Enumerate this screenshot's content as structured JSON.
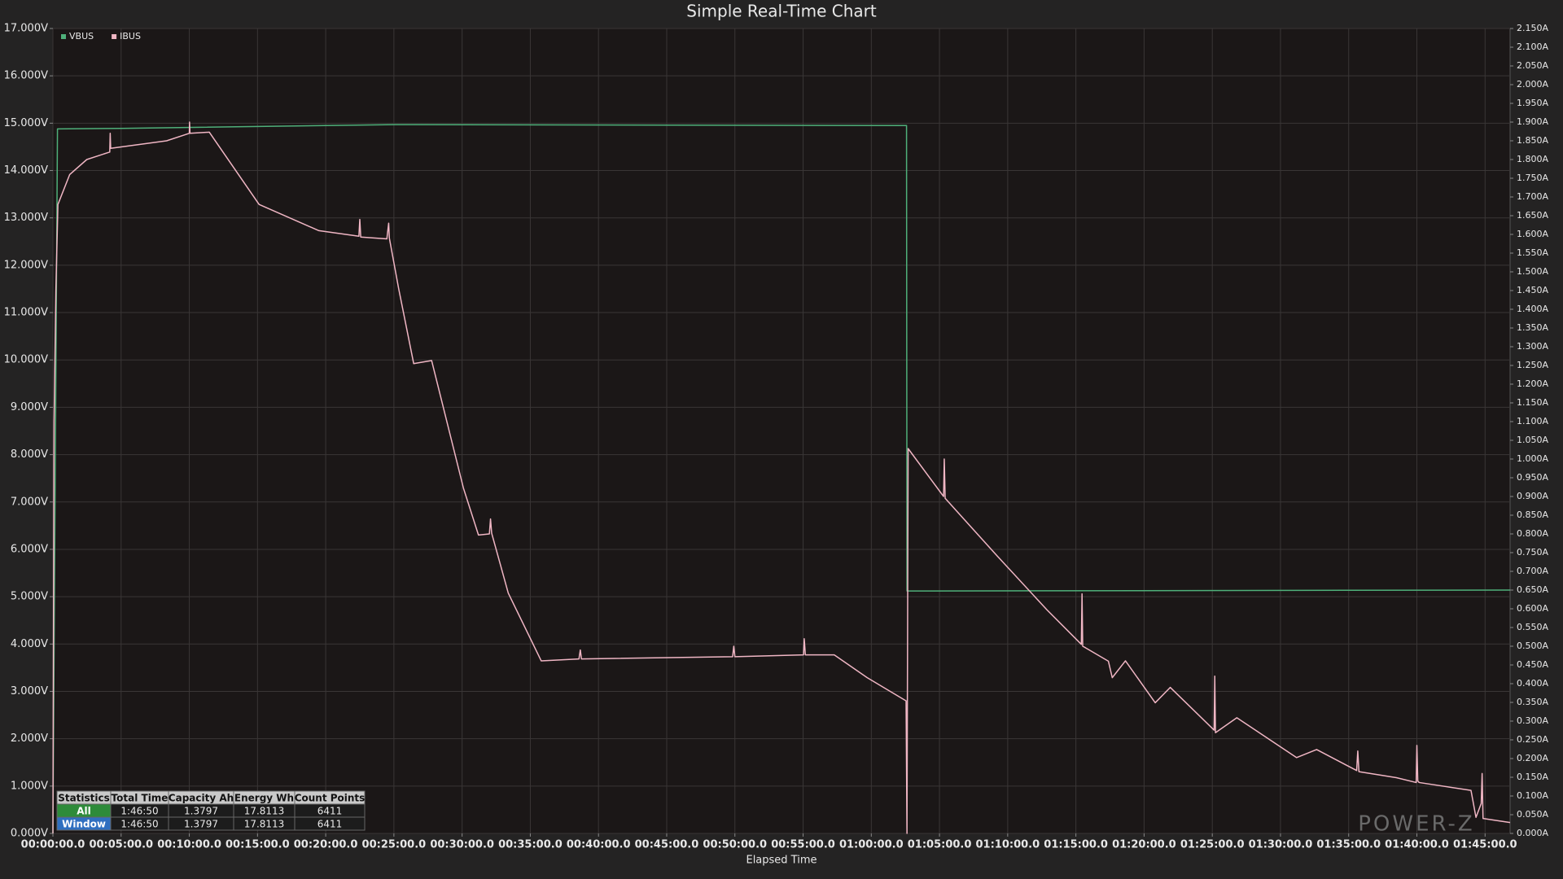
{
  "chart_data": {
    "type": "line",
    "title": "Simple Real-Time Chart",
    "x_label": "Elapsed Time",
    "watermark": "POWER-Z",
    "grid": true,
    "legend": "top-left",
    "xlim": [
      0,
      6410
    ],
    "xticks": [
      {
        "value": 0,
        "label": "00:00:00.0"
      },
      {
        "value": 300,
        "label": "00:05:00.0"
      },
      {
        "value": 600,
        "label": "00:10:00.0"
      },
      {
        "value": 900,
        "label": "00:15:00.0"
      },
      {
        "value": 1200,
        "label": "00:20:00.0"
      },
      {
        "value": 1500,
        "label": "00:25:00.0"
      },
      {
        "value": 1800,
        "label": "00:30:00.0"
      },
      {
        "value": 2100,
        "label": "00:35:00.0"
      },
      {
        "value": 2400,
        "label": "00:40:00.0"
      },
      {
        "value": 2700,
        "label": "00:45:00.0"
      },
      {
        "value": 3000,
        "label": "00:50:00.0"
      },
      {
        "value": 3300,
        "label": "00:55:00.0"
      },
      {
        "value": 3600,
        "label": "01:00:00.0"
      },
      {
        "value": 3900,
        "label": "01:05:00.0"
      },
      {
        "value": 4200,
        "label": "01:10:00.0"
      },
      {
        "value": 4500,
        "label": "01:15:00.0"
      },
      {
        "value": 4800,
        "label": "01:20:00.0"
      },
      {
        "value": 5100,
        "label": "01:25:00.0"
      },
      {
        "value": 5400,
        "label": "01:30:00.0"
      },
      {
        "value": 5700,
        "label": "01:35:00.0"
      },
      {
        "value": 6000,
        "label": "01:40:00.0"
      },
      {
        "value": 6300,
        "label": "01:45:00.0"
      }
    ],
    "ylim": [
      0,
      17
    ],
    "yticks": [
      {
        "value": 0,
        "label": "0.000V"
      },
      {
        "value": 1,
        "label": "1.000V"
      },
      {
        "value": 2,
        "label": "2.000V"
      },
      {
        "value": 3,
        "label": "3.000V"
      },
      {
        "value": 4,
        "label": "4.000V"
      },
      {
        "value": 5,
        "label": "5.000V"
      },
      {
        "value": 6,
        "label": "6.000V"
      },
      {
        "value": 7,
        "label": "7.000V"
      },
      {
        "value": 8,
        "label": "8.000V"
      },
      {
        "value": 9,
        "label": "9.000V"
      },
      {
        "value": 10,
        "label": "10.000V"
      },
      {
        "value": 11,
        "label": "11.000V"
      },
      {
        "value": 12,
        "label": "12.000V"
      },
      {
        "value": 13,
        "label": "13.000V"
      },
      {
        "value": 14,
        "label": "14.000V"
      },
      {
        "value": 15,
        "label": "15.000V"
      },
      {
        "value": 16,
        "label": "16.000V"
      },
      {
        "value": 17,
        "label": "17.000V"
      }
    ],
    "y2lim": [
      0,
      2.15
    ],
    "y2ticks": [
      {
        "value": 0,
        "label": "0.000A"
      },
      {
        "value": 0.05,
        "label": "0.050A"
      },
      {
        "value": 0.1,
        "label": "0.100A"
      },
      {
        "value": 0.15,
        "label": "0.150A"
      },
      {
        "value": 0.2,
        "label": "0.200A"
      },
      {
        "value": 0.25,
        "label": "0.250A"
      },
      {
        "value": 0.3,
        "label": "0.300A"
      },
      {
        "value": 0.35,
        "label": "0.350A"
      },
      {
        "value": 0.4,
        "label": "0.400A"
      },
      {
        "value": 0.45,
        "label": "0.450A"
      },
      {
        "value": 0.5,
        "label": "0.500A"
      },
      {
        "value": 0.55,
        "label": "0.550A"
      },
      {
        "value": 0.6,
        "label": "0.600A"
      },
      {
        "value": 0.65,
        "label": "0.650A"
      },
      {
        "value": 0.7,
        "label": "0.700A"
      },
      {
        "value": 0.75,
        "label": "0.750A"
      },
      {
        "value": 0.8,
        "label": "0.800A"
      },
      {
        "value": 0.85,
        "label": "0.850A"
      },
      {
        "value": 0.9,
        "label": "0.900A"
      },
      {
        "value": 0.95,
        "label": "0.950A"
      },
      {
        "value": 1.0,
        "label": "1.000A"
      },
      {
        "value": 1.05,
        "label": "1.050A"
      },
      {
        "value": 1.1,
        "label": "1.100A"
      },
      {
        "value": 1.15,
        "label": "1.150A"
      },
      {
        "value": 1.2,
        "label": "1.200A"
      },
      {
        "value": 1.25,
        "label": "1.250A"
      },
      {
        "value": 1.3,
        "label": "1.300A"
      },
      {
        "value": 1.35,
        "label": "1.350A"
      },
      {
        "value": 1.4,
        "label": "1.400A"
      },
      {
        "value": 1.45,
        "label": "1.450A"
      },
      {
        "value": 1.5,
        "label": "1.500A"
      },
      {
        "value": 1.55,
        "label": "1.550A"
      },
      {
        "value": 1.6,
        "label": "1.600A"
      },
      {
        "value": 1.65,
        "label": "1.650A"
      },
      {
        "value": 1.7,
        "label": "1.700A"
      },
      {
        "value": 1.75,
        "label": "1.750A"
      },
      {
        "value": 1.8,
        "label": "1.800A"
      },
      {
        "value": 1.85,
        "label": "1.850A"
      },
      {
        "value": 1.9,
        "label": "1.900A"
      },
      {
        "value": 1.95,
        "label": "1.950A"
      },
      {
        "value": 2.0,
        "label": "2.000A"
      },
      {
        "value": 2.05,
        "label": "2.050A"
      },
      {
        "value": 2.1,
        "label": "2.100A"
      },
      {
        "value": 2.15,
        "label": "2.150A"
      }
    ],
    "series": [
      {
        "name": "VBUS",
        "color": "#4fb07a",
        "axis": "y",
        "x": [
          0,
          20,
          300,
          1500,
          3755,
          3757,
          6410
        ],
        "values": [
          0,
          14.88,
          14.89,
          14.97,
          14.95,
          5.12,
          5.14
        ]
      },
      {
        "name": "IBUS",
        "color": "#f0b6c4",
        "axis": "y2",
        "x": [
          0,
          5,
          13,
          22,
          74,
          149,
          250,
          252,
          254,
          500,
          600,
          601,
          603,
          688,
          907,
          1170,
          1346,
          1350,
          1354,
          1469,
          1477,
          1480,
          1521,
          1587,
          1666,
          1806,
          1872,
          1920,
          1925,
          1930,
          2003,
          2148,
          2314,
          2320,
          2325,
          2990,
          2995,
          3000,
          3302,
          3305,
          3310,
          3437,
          3582,
          3753,
          3757,
          3762,
          3918,
          3921,
          3925,
          4154,
          4373,
          4524,
          4527,
          4530,
          4542,
          4643,
          4660,
          4718,
          4849,
          4915,
          5108,
          5111,
          5114,
          5208,
          5471,
          5559,
          5735,
          5740,
          5745,
          5910,
          5997,
          6000,
          6004,
          6010,
          6238,
          6260,
          6283,
          6287,
          6291,
          6410
        ],
        "values": [
          0,
          1.1,
          1.45,
          1.68,
          1.76,
          1.8,
          1.82,
          1.87,
          1.83,
          1.85,
          1.87,
          1.9,
          1.87,
          1.873,
          1.68,
          1.61,
          1.595,
          1.64,
          1.593,
          1.588,
          1.63,
          1.59,
          1.455,
          1.255,
          1.263,
          0.922,
          0.797,
          0.8,
          0.84,
          0.802,
          0.642,
          0.461,
          0.466,
          0.49,
          0.466,
          0.472,
          0.5,
          0.472,
          0.477,
          0.52,
          0.477,
          0.477,
          0.416,
          0.354,
          0,
          1.028,
          0.9,
          1.0,
          0.895,
          0.741,
          0.597,
          0.505,
          0.64,
          0.5,
          0.496,
          0.46,
          0.416,
          0.461,
          0.349,
          0.39,
          0.276,
          0.42,
          0.269,
          0.309,
          0.2025,
          0.224,
          0.168,
          0.22,
          0.165,
          0.149,
          0.136,
          0.235,
          0.14,
          0.136,
          0.115,
          0.043,
          0.08,
          0.16,
          0.04,
          0.029
        ]
      }
    ],
    "stats_table": {
      "columns": [
        "Statistics",
        "Total Time",
        "Capacity Ah",
        "Energy Wh",
        "Count Points"
      ],
      "rows": [
        [
          "All",
          "1:46:50",
          "1.3797",
          "17.8113",
          "6411"
        ],
        [
          "Window",
          "1:46:50",
          "1.3797",
          "17.8113",
          "6411"
        ]
      ]
    }
  }
}
